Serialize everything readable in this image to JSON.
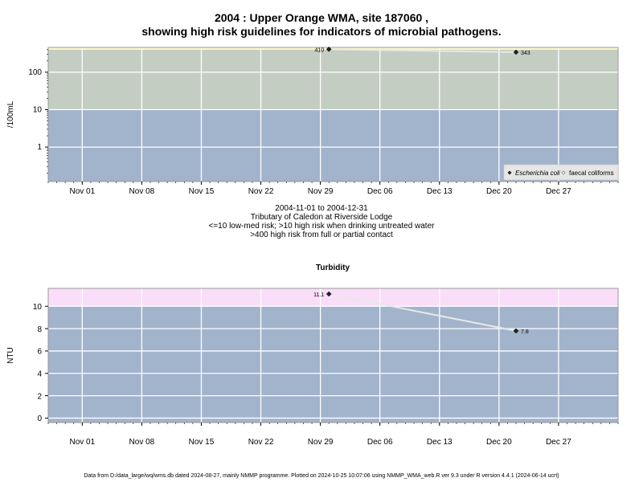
{
  "header": {
    "title_line1": "2004 : Upper Orange WMA, site 187060 ,",
    "title_line2": "showing high risk guidelines for indicators of microbial pathogens."
  },
  "caption": {
    "line1": "2004-11-01 to 2004-12-31",
    "line2": "Tributary of Caledon at Riverside Lodge",
    "line3": "<=10 low-med risk; >10 high risk when drinking untreated water",
    "line4": ">400 high risk from full or partial contact"
  },
  "footer": {
    "text": "Data from D:/data_large/wq/wms.db dated 2024-08-27, mainly NMMP programme. Plotted on 2024-10-25 10:07:06 using NMMP_WMA_web.R ver 9.3 under R version 4.4.1 (2024-06-14 ucrt)"
  },
  "colors": {
    "low_zone": "#a2b3cc",
    "mid_zone": "#c4cdc2",
    "high_zone_micro": "#faf5cc",
    "high_zone_turb": "#f9ddf9",
    "grid": "#ffffff",
    "line": "#e8e8e8",
    "point": "#222222"
  },
  "chart_data": [
    {
      "type": "line",
      "title": "",
      "ylabel": "/100mL",
      "y_scale": "log",
      "ylim": [
        0.12,
        460
      ],
      "xlim": [
        "2004-10-28",
        "2005-01-03"
      ],
      "x_ticks": [
        "2004-11-01",
        "2004-11-08",
        "2004-11-15",
        "2004-11-22",
        "2004-11-29",
        "2004-12-06",
        "2004-12-13",
        "2004-12-20",
        "2004-12-27"
      ],
      "x_tick_labels": [
        "Nov 01",
        "Nov 08",
        "Nov 15",
        "Nov 22",
        "Nov 29",
        "Dec 06",
        "Dec 13",
        "Dec 20",
        "Dec 27"
      ],
      "y_ticks": [
        1,
        10,
        100
      ],
      "y_tick_labels": [
        "1",
        "10",
        "100"
      ],
      "zones": [
        {
          "from": 0.12,
          "to": 10,
          "color": "#a2b3cc"
        },
        {
          "from": 10,
          "to": 400,
          "color": "#c4cdc2"
        },
        {
          "from": 400,
          "to": 460,
          "color": "#faf5cc"
        }
      ],
      "grid": true,
      "legend_position": "bottom-right",
      "series": [
        {
          "name": "Escherichia coli",
          "marker": "filled-diamond",
          "x": [
            "2004-11-30",
            "2004-12-22"
          ],
          "values": [
            410,
            343
          ],
          "labels": [
            "410",
            "343"
          ]
        },
        {
          "name": "faecal coliforms",
          "marker": "open-diamond",
          "x": [],
          "values": [],
          "labels": []
        }
      ]
    },
    {
      "type": "line",
      "title": "Turbidity",
      "ylabel": "NTU",
      "y_scale": "linear",
      "ylim": [
        -0.4,
        11.6
      ],
      "xlim": [
        "2004-10-28",
        "2005-01-03"
      ],
      "x_ticks": [
        "2004-11-01",
        "2004-11-08",
        "2004-11-15",
        "2004-11-22",
        "2004-11-29",
        "2004-12-06",
        "2004-12-13",
        "2004-12-20",
        "2004-12-27"
      ],
      "x_tick_labels": [
        "Nov 01",
        "Nov 08",
        "Nov 15",
        "Nov 22",
        "Nov 29",
        "Dec 06",
        "Dec 13",
        "Dec 20",
        "Dec 27"
      ],
      "y_ticks": [
        0,
        2,
        4,
        6,
        8,
        10
      ],
      "y_tick_labels": [
        "0",
        "2",
        "4",
        "6",
        "8",
        "10"
      ],
      "zones": [
        {
          "from": -0.4,
          "to": 10,
          "color": "#a2b3cc"
        },
        {
          "from": 10,
          "to": 11.6,
          "color": "#f9ddf9"
        }
      ],
      "grid": true,
      "series": [
        {
          "marker": "filled-diamond",
          "x": [
            "2004-11-30",
            "2004-12-22"
          ],
          "values": [
            11.1,
            7.8
          ],
          "labels": [
            "11.1",
            "7.8"
          ]
        }
      ]
    }
  ]
}
